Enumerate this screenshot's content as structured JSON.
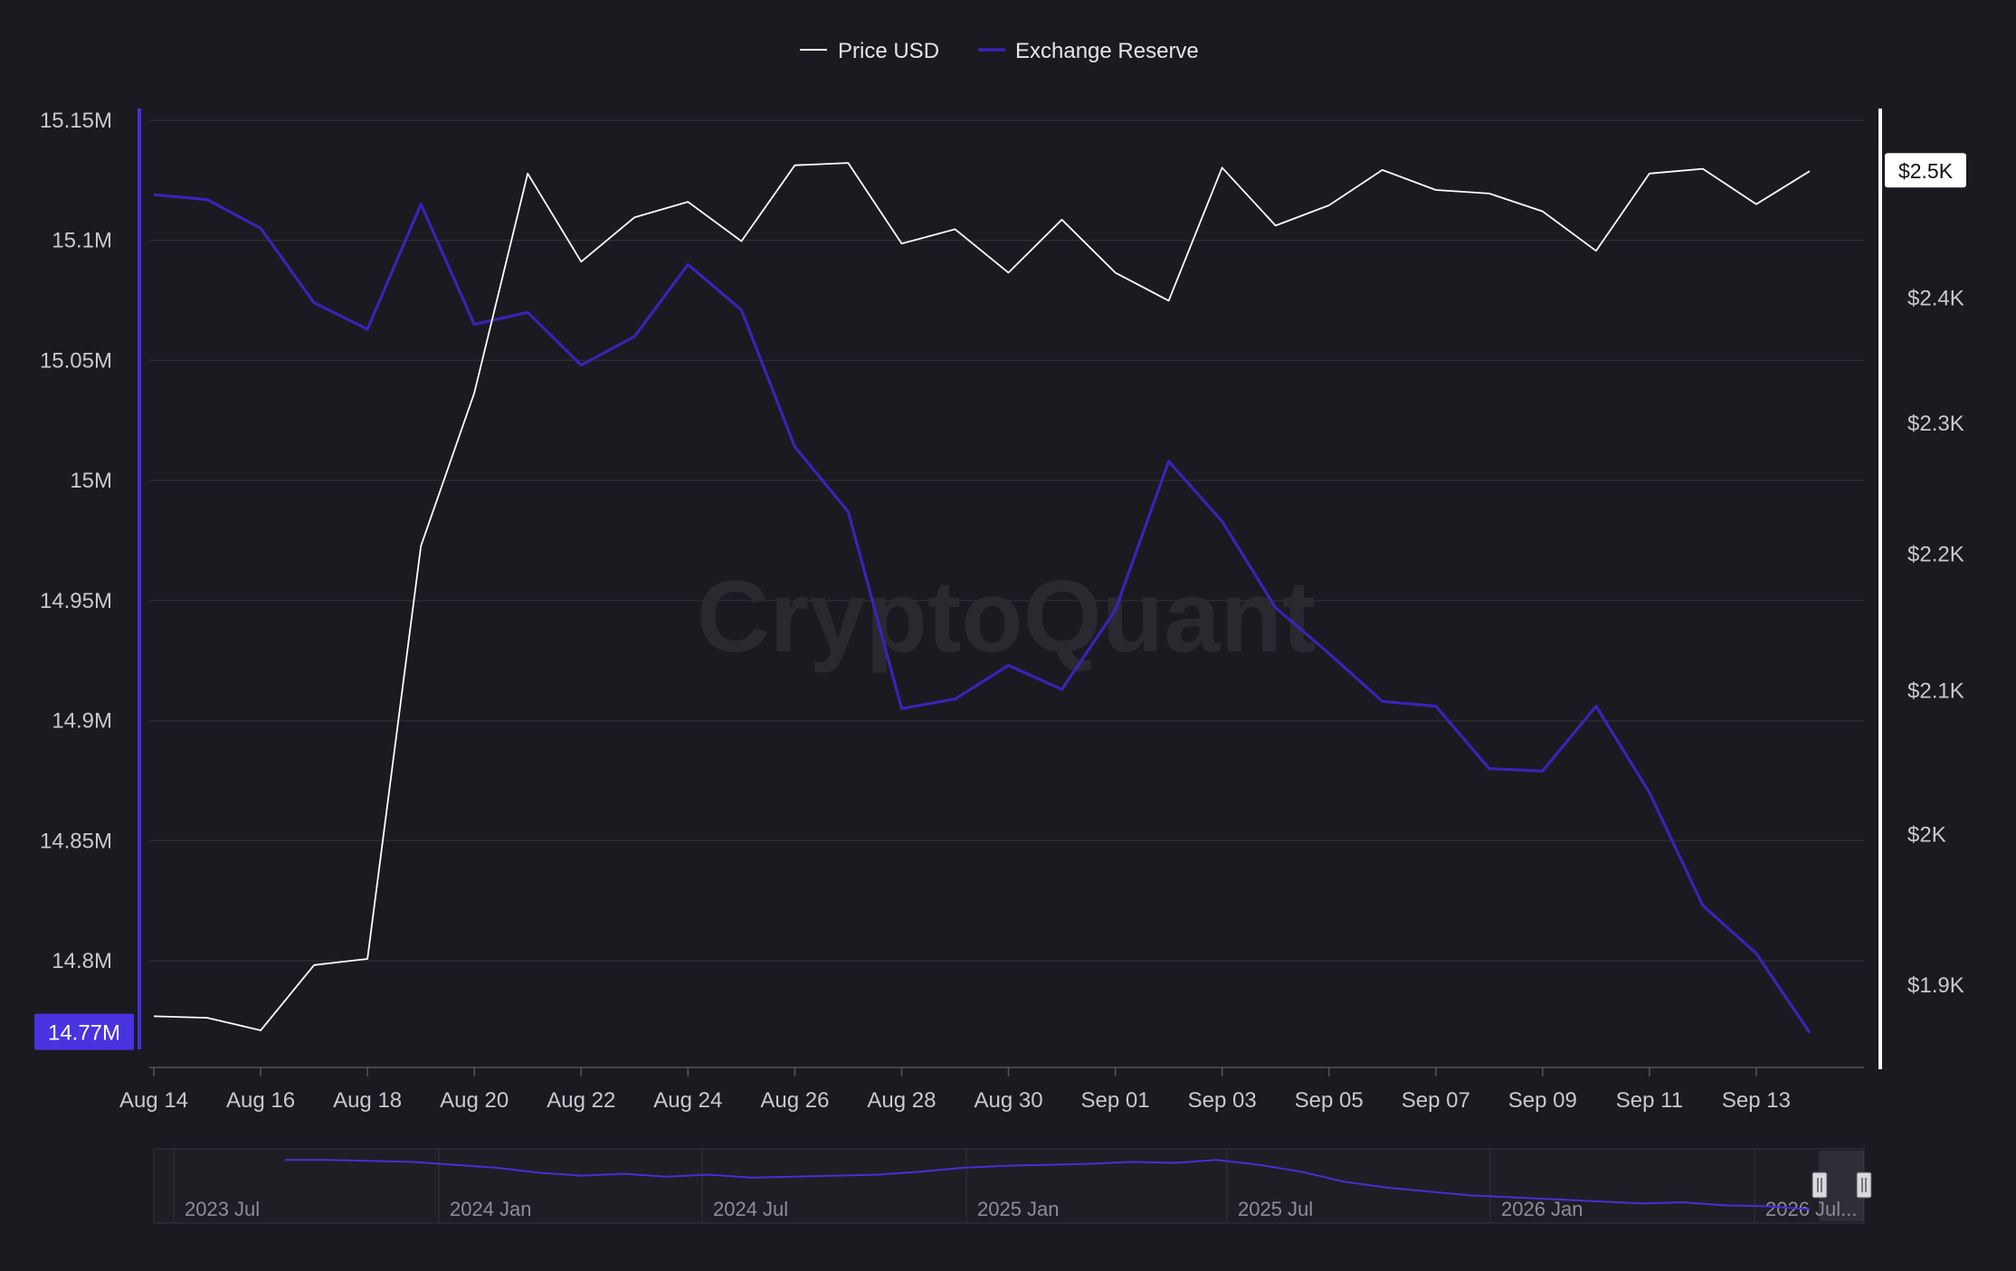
{
  "colors": {
    "background": "#1b1a20",
    "grid": "#2c2b33",
    "price": "#ffffff",
    "reserve": "#3a23b8",
    "reserve_axis": "#4530d6",
    "reserve_badge": "#4a33e0",
    "tick_text": "#c9c8cf",
    "watermark": "#2a2930"
  },
  "watermark": "CryptoQuant",
  "legend": [
    {
      "label": "Price USD",
      "series": "price"
    },
    {
      "label": "Exchange Reserve",
      "series": "reserve"
    }
  ],
  "badges": {
    "reserve_current": "14.77M",
    "price_current": "$2.5K"
  },
  "navigator": {
    "labels": [
      "2023 Jul",
      "2024 Jan",
      "2024 Jul",
      "2025 Jan",
      "2025 Jul",
      "2026 Jan",
      "2026 Jul..."
    ],
    "reserve_trend": [
      15.6,
      15.6,
      15.59,
      15.58,
      15.55,
      15.52,
      15.47,
      15.44,
      15.46,
      15.43,
      15.45,
      15.42,
      15.43,
      15.44,
      15.45,
      15.48,
      15.52,
      15.54,
      15.55,
      15.56,
      15.58,
      15.57,
      15.6,
      15.55,
      15.48,
      15.38,
      15.32,
      15.28,
      15.24,
      15.22,
      15.2,
      15.18,
      15.16,
      15.17,
      15.14,
      15.13,
      15.1
    ]
  },
  "chart_data": {
    "type": "line",
    "x": [
      "Aug 14",
      "Aug 15",
      "Aug 16",
      "Aug 17",
      "Aug 18",
      "Aug 19",
      "Aug 20",
      "Aug 21",
      "Aug 22",
      "Aug 23",
      "Aug 24",
      "Aug 25",
      "Aug 26",
      "Aug 27",
      "Aug 28",
      "Aug 29",
      "Aug 30",
      "Aug 31",
      "Sep 01",
      "Sep 02",
      "Sep 03",
      "Sep 04",
      "Sep 05",
      "Sep 06",
      "Sep 07",
      "Sep 08",
      "Sep 09",
      "Sep 10",
      "Sep 11",
      "Sep 12",
      "Sep 13",
      "Sep 14"
    ],
    "x_ticks": [
      "Aug 14",
      "Aug 16",
      "Aug 18",
      "Aug 20",
      "Aug 22",
      "Aug 24",
      "Aug 26",
      "Aug 28",
      "Aug 30",
      "Sep 01",
      "Sep 03",
      "Sep 05",
      "Sep 07",
      "Sep 09",
      "Sep 11",
      "Sep 13"
    ],
    "series": [
      {
        "name": "Exchange Reserve",
        "axis": "left",
        "values": [
          15.119,
          15.117,
          15.105,
          15.074,
          15.063,
          15.115,
          15.065,
          15.07,
          15.048,
          15.06,
          15.09,
          15.071,
          15.014,
          14.987,
          14.905,
          14.909,
          14.923,
          14.913,
          14.946,
          15.008,
          14.983,
          14.947,
          14.928,
          14.908,
          14.906,
          14.88,
          14.879,
          14.906,
          14.87,
          14.823,
          14.803,
          14.77
        ]
      },
      {
        "name": "Price USD",
        "axis": "right",
        "values": [
          1880,
          1879,
          1871,
          1913,
          1917,
          2206,
          2324,
          2504,
          2430,
          2467,
          2480,
          2447,
          2511,
          2513,
          2445,
          2457,
          2421,
          2465,
          2421,
          2398,
          2509,
          2460,
          2477,
          2507,
          2490,
          2487,
          2472,
          2439,
          2504,
          2508,
          2478,
          2506
        ]
      }
    ],
    "y_left": {
      "ticks": [
        "15.15M",
        "15.1M",
        "15.05M",
        "15M",
        "14.95M",
        "14.9M",
        "14.85M",
        "14.8M"
      ],
      "tick_values": [
        15.15,
        15.1,
        15.05,
        15.0,
        14.95,
        14.9,
        14.85,
        14.8
      ]
    },
    "y_right": {
      "ticks": [
        "$2.5K",
        "$2.4K",
        "$2.3K",
        "$2.2K",
        "$2.1K",
        "$2K",
        "$1.9K"
      ],
      "tick_values": [
        2500,
        2400,
        2300,
        2200,
        2100,
        2000,
        1900
      ],
      "log_scale": true
    },
    "grid": true,
    "legend_position": "top-center"
  }
}
